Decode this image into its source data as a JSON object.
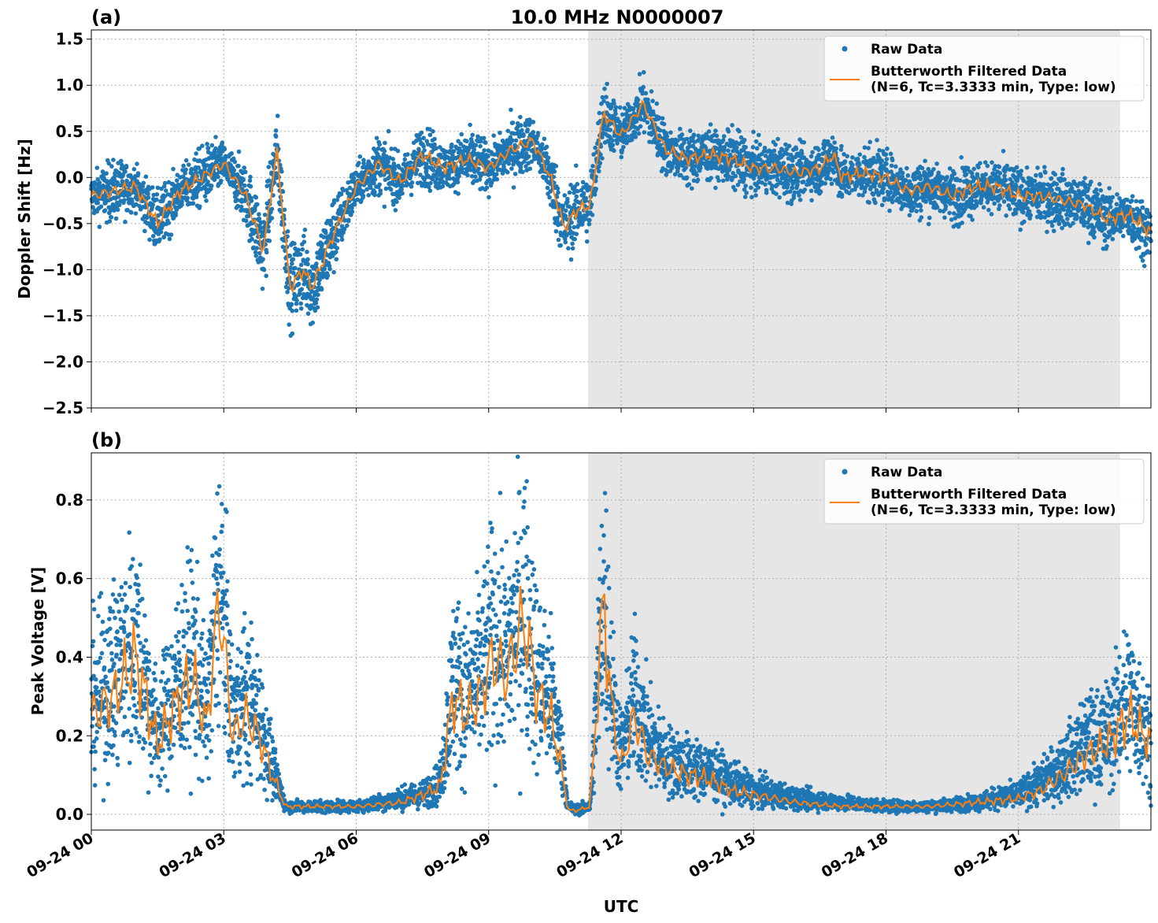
{
  "figure": {
    "title": "10.0 MHz N0000007",
    "xlabel": "UTC",
    "x_tick_labels": [
      "09-24 00",
      "09-24 03",
      "09-24 06",
      "09-24 09",
      "09-24 12",
      "09-24 15",
      "09-24 18",
      "09-24 21"
    ],
    "colors": {
      "raw": "#1f77b4",
      "filtered": "#ff7f0e",
      "shade": "#e6e6e6",
      "grid": "#b0b0b0"
    }
  },
  "chart_data": [
    {
      "type": "scatter",
      "panel_label": "(a)",
      "title": "10.0 MHz N0000007",
      "xlabel": "UTC",
      "ylabel": "Doppler Shift [Hz]",
      "x_unit": "hours UTC on 09-24",
      "xlim": [
        0,
        24
      ],
      "ylim": [
        -2.5,
        1.6
      ],
      "yticks": [
        1.5,
        1.0,
        0.5,
        0.0,
        -0.5,
        -1.0,
        -1.5,
        -2.0,
        -2.5
      ],
      "ytick_labels": [
        "1.5",
        "1.0",
        "0.5",
        "0.0",
        "−0.5",
        "−1.0",
        "−1.5",
        "−2.0",
        "−2.5"
      ],
      "grid": true,
      "legend_position": "top-right",
      "shaded_interval": [
        11.25,
        23.3
      ],
      "series": [
        {
          "name": "Raw Data",
          "style": "points",
          "x": [
            0,
            0.5,
            1,
            1.5,
            2,
            2.5,
            3,
            3.5,
            3.9,
            4.2,
            4.5,
            4.8,
            5,
            5.5,
            6,
            6.5,
            7,
            7.5,
            8,
            8.5,
            9,
            9.5,
            10,
            10.4,
            10.7,
            11,
            11.3,
            11.6,
            12,
            12.5,
            13,
            13.5,
            14,
            14.5,
            15,
            15.5,
            16,
            16.5,
            16.8,
            17,
            17.5,
            18,
            18.5,
            19,
            19.5,
            20,
            20.5,
            21,
            21.5,
            22,
            22.5,
            23,
            23.5,
            24
          ],
          "y": [
            -0.2,
            -0.15,
            -0.1,
            -0.5,
            -0.15,
            0.0,
            0.15,
            -0.2,
            -0.8,
            0.3,
            -1.2,
            -1.0,
            -1.2,
            -0.6,
            -0.1,
            0.15,
            -0.05,
            0.25,
            0.1,
            0.2,
            0.1,
            0.3,
            0.4,
            0.0,
            -0.55,
            -0.35,
            -0.3,
            0.7,
            0.45,
            0.8,
            0.3,
            0.2,
            0.25,
            0.2,
            0.1,
            0.1,
            0.05,
            0.1,
            0.25,
            0.0,
            0.05,
            0.0,
            -0.15,
            -0.1,
            -0.2,
            -0.1,
            -0.1,
            -0.2,
            -0.2,
            -0.25,
            -0.3,
            -0.45,
            -0.4,
            -0.6
          ]
        },
        {
          "name": "Butterworth Filtered Data\n(N=6, Tc=3.3333 min, Type: low)",
          "style": "line",
          "x": [
            0,
            0.5,
            1,
            1.5,
            2,
            2.5,
            3,
            3.5,
            3.9,
            4.2,
            4.5,
            4.8,
            5,
            5.5,
            6,
            6.5,
            7,
            7.5,
            8,
            8.5,
            9,
            9.5,
            10,
            10.4,
            10.7,
            11,
            11.3,
            11.6,
            12,
            12.5,
            13,
            13.5,
            14,
            14.5,
            15,
            15.5,
            16,
            16.5,
            16.8,
            17,
            17.5,
            18,
            18.5,
            19,
            19.5,
            20,
            20.5,
            21,
            21.5,
            22,
            22.5,
            23,
            23.5,
            24
          ],
          "y": [
            -0.2,
            -0.15,
            -0.1,
            -0.5,
            -0.15,
            0.0,
            0.15,
            -0.2,
            -0.8,
            0.3,
            -1.2,
            -1.0,
            -1.2,
            -0.6,
            -0.1,
            0.15,
            -0.05,
            0.25,
            0.1,
            0.2,
            0.1,
            0.3,
            0.4,
            0.0,
            -0.55,
            -0.35,
            -0.3,
            0.7,
            0.45,
            0.8,
            0.3,
            0.2,
            0.25,
            0.2,
            0.1,
            0.1,
            0.05,
            0.1,
            0.25,
            0.0,
            0.05,
            0.0,
            -0.15,
            -0.1,
            -0.2,
            -0.1,
            -0.1,
            -0.2,
            -0.2,
            -0.25,
            -0.3,
            -0.45,
            -0.4,
            -0.6
          ]
        }
      ]
    },
    {
      "type": "scatter",
      "panel_label": "(b)",
      "xlabel": "UTC",
      "ylabel": "Peak Voltage [V]",
      "x_unit": "hours UTC on 09-24",
      "xlim": [
        0,
        24
      ],
      "ylim": [
        -0.04,
        0.92
      ],
      "yticks": [
        0.8,
        0.6,
        0.4,
        0.2,
        0.0
      ],
      "ytick_labels": [
        "0.8",
        "0.6",
        "0.4",
        "0.2",
        "0.0"
      ],
      "grid": true,
      "legend_position": "top-right",
      "shaded_interval": [
        11.25,
        23.3
      ],
      "series": [
        {
          "name": "Raw Data",
          "style": "points",
          "x": [
            0,
            0.5,
            1,
            1.5,
            2,
            2.3,
            2.6,
            2.9,
            3.2,
            3.5,
            3.8,
            4.1,
            4.4,
            5,
            6,
            7,
            7.5,
            7.9,
            8.2,
            8.5,
            8.8,
            9.1,
            9.4,
            9.8,
            10.1,
            10.4,
            10.6,
            10.8,
            11,
            11.3,
            11.6,
            11.8,
            12,
            12.3,
            12.6,
            13,
            13.5,
            14,
            14.5,
            15,
            16,
            17,
            18,
            19,
            20,
            21,
            21.5,
            22,
            22.5,
            23,
            23.5,
            24
          ],
          "y": [
            0.28,
            0.35,
            0.45,
            0.2,
            0.35,
            0.4,
            0.25,
            0.6,
            0.25,
            0.3,
            0.25,
            0.12,
            0.02,
            0.02,
            0.02,
            0.04,
            0.05,
            0.08,
            0.35,
            0.3,
            0.35,
            0.45,
            0.4,
            0.55,
            0.35,
            0.3,
            0.2,
            0.02,
            0.01,
            0.02,
            0.58,
            0.3,
            0.15,
            0.3,
            0.2,
            0.14,
            0.12,
            0.11,
            0.08,
            0.06,
            0.04,
            0.03,
            0.02,
            0.02,
            0.03,
            0.05,
            0.08,
            0.12,
            0.18,
            0.2,
            0.3,
            0.2
          ]
        },
        {
          "name": "Butterworth Filtered Data\n(N=6, Tc=3.3333 min, Type: low)",
          "style": "line",
          "x": [
            0,
            0.5,
            1,
            1.5,
            2,
            2.3,
            2.6,
            2.9,
            3.2,
            3.5,
            3.8,
            4.1,
            4.4,
            5,
            6,
            7,
            7.5,
            7.9,
            8.2,
            8.5,
            8.8,
            9.1,
            9.4,
            9.8,
            10.1,
            10.4,
            10.6,
            10.8,
            11,
            11.3,
            11.6,
            11.8,
            12,
            12.3,
            12.6,
            13,
            13.5,
            14,
            14.5,
            15,
            16,
            17,
            18,
            19,
            20,
            21,
            21.5,
            22,
            22.5,
            23,
            23.5,
            24
          ],
          "y": [
            0.25,
            0.3,
            0.4,
            0.18,
            0.3,
            0.35,
            0.22,
            0.55,
            0.2,
            0.25,
            0.2,
            0.1,
            0.02,
            0.02,
            0.02,
            0.03,
            0.05,
            0.07,
            0.3,
            0.25,
            0.3,
            0.4,
            0.35,
            0.5,
            0.3,
            0.25,
            0.15,
            0.01,
            0.01,
            0.02,
            0.55,
            0.25,
            0.12,
            0.25,
            0.15,
            0.12,
            0.1,
            0.09,
            0.06,
            0.05,
            0.03,
            0.02,
            0.02,
            0.02,
            0.03,
            0.04,
            0.06,
            0.1,
            0.15,
            0.18,
            0.25,
            0.18
          ]
        }
      ]
    }
  ]
}
